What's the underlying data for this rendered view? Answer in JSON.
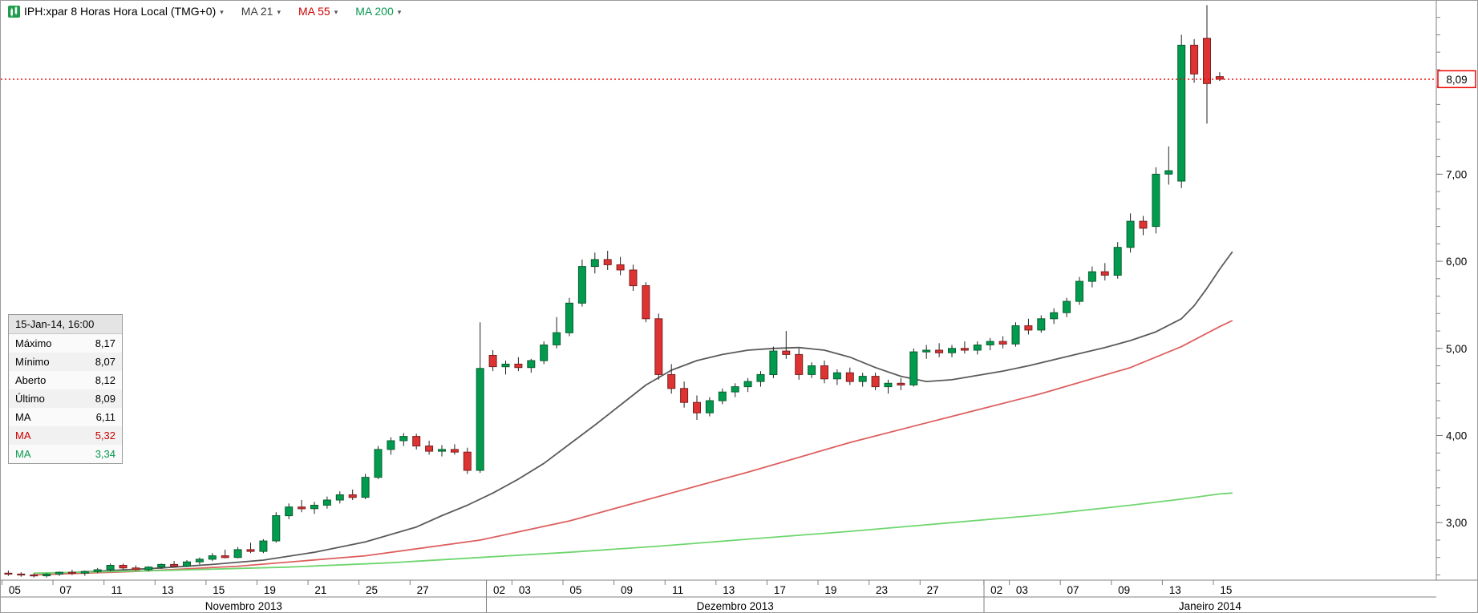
{
  "header": {
    "title": "IPH:xpar 8 Horas Hora Local (TMG+0)",
    "dropdown_caret": "▾",
    "ma_indicators": [
      {
        "label": "MA 21",
        "color": "#3c3c3c"
      },
      {
        "label": "MA 55",
        "color": "#cc0000"
      },
      {
        "label": "MA 200",
        "color": "#089950"
      }
    ]
  },
  "tooltip": {
    "timestamp": "15-Jan-14, 16:00",
    "rows": [
      {
        "label": "Máximo",
        "value": "8,17",
        "color": "#000000"
      },
      {
        "label": "Mínimo",
        "value": "8,07",
        "color": "#000000"
      },
      {
        "label": "Aberto",
        "value": "8,12",
        "color": "#000000"
      },
      {
        "label": "Último",
        "value": "8,09",
        "color": "#000000"
      },
      {
        "label": "MA",
        "value": "6,11",
        "color": "#000000"
      },
      {
        "label": "MA",
        "value": "5,32",
        "color": "#cc0000"
      },
      {
        "label": "MA",
        "value": "3,34",
        "color": "#089950"
      }
    ]
  },
  "price_marker": {
    "label": "8,09",
    "value": 8.09,
    "color": "#ee0000"
  },
  "chart_data": {
    "type": "candlestick",
    "title": "IPH:xpar 8 Horas Hora Local (TMG+0)",
    "last_price": 8.09,
    "price_range": {
      "min": 2.34,
      "max": 8.99
    },
    "y_ticks": [
      {
        "v": 3,
        "label": "3,00"
      },
      {
        "v": 4,
        "label": "4,00"
      },
      {
        "v": 5,
        "label": "5,00"
      },
      {
        "v": 6,
        "label": "6,00"
      },
      {
        "v": 7,
        "label": "7,00"
      }
    ],
    "x_ticks": [
      {
        "i": 0,
        "label": "05"
      },
      {
        "i": 4,
        "label": "07"
      },
      {
        "i": 8,
        "label": "11"
      },
      {
        "i": 12,
        "label": "13"
      },
      {
        "i": 16,
        "label": "15"
      },
      {
        "i": 20,
        "label": "19"
      },
      {
        "i": 24,
        "label": "21"
      },
      {
        "i": 28,
        "label": "25"
      },
      {
        "i": 32,
        "label": "27"
      },
      {
        "i": 38,
        "label": "02"
      },
      {
        "i": 40,
        "label": "03"
      },
      {
        "i": 44,
        "label": "05"
      },
      {
        "i": 48,
        "label": "09"
      },
      {
        "i": 52,
        "label": "11"
      },
      {
        "i": 56,
        "label": "13"
      },
      {
        "i": 60,
        "label": "17"
      },
      {
        "i": 64,
        "label": "19"
      },
      {
        "i": 68,
        "label": "23"
      },
      {
        "i": 72,
        "label": "27"
      },
      {
        "i": 77,
        "label": "02"
      },
      {
        "i": 79,
        "label": "03"
      },
      {
        "i": 83,
        "label": "07"
      },
      {
        "i": 87,
        "label": "09"
      },
      {
        "i": 91,
        "label": "13"
      },
      {
        "i": 95,
        "label": "15"
      }
    ],
    "months": [
      {
        "label": "Novembro 2013",
        "from": null,
        "to": 37.5
      },
      {
        "label": "Dezembro 2013",
        "from": 37.5,
        "to": 76.5
      },
      {
        "label": "Janeiro 2014",
        "from": 76.5,
        "to": null
      }
    ],
    "colors": {
      "up": "#009b4e",
      "up_stroke": "#0a5f30",
      "down": "#dd3333",
      "down_stroke": "#7e1f1f",
      "wick": "#222222",
      "ma21": "#5a5a5a",
      "ma55": "#de5f5f",
      "ma200": "#6fd66f",
      "marker": "#ee0000",
      "axis": "#808080",
      "text": "#000000"
    },
    "candles": [
      [
        2.42,
        2.45,
        2.39,
        2.41
      ],
      [
        2.41,
        2.43,
        2.38,
        2.4
      ],
      [
        2.4,
        2.42,
        2.37,
        2.39
      ],
      [
        2.39,
        2.42,
        2.37,
        2.41
      ],
      [
        2.41,
        2.44,
        2.39,
        2.43
      ],
      [
        2.43,
        2.46,
        2.4,
        2.42
      ],
      [
        2.42,
        2.45,
        2.39,
        2.44
      ],
      [
        2.44,
        2.48,
        2.42,
        2.46
      ],
      [
        2.46,
        2.53,
        2.44,
        2.51
      ],
      [
        2.51,
        2.53,
        2.46,
        2.48
      ],
      [
        2.48,
        2.51,
        2.45,
        2.46
      ],
      [
        2.46,
        2.5,
        2.44,
        2.49
      ],
      [
        2.49,
        2.53,
        2.47,
        2.52
      ],
      [
        2.52,
        2.56,
        2.49,
        2.5
      ],
      [
        2.5,
        2.57,
        2.49,
        2.55
      ],
      [
        2.55,
        2.6,
        2.52,
        2.58
      ],
      [
        2.58,
        2.65,
        2.56,
        2.62
      ],
      [
        2.62,
        2.69,
        2.59,
        2.6
      ],
      [
        2.6,
        2.72,
        2.59,
        2.69
      ],
      [
        2.69,
        2.77,
        2.65,
        2.67
      ],
      [
        2.67,
        2.81,
        2.65,
        2.79
      ],
      [
        2.79,
        3.12,
        2.77,
        3.08
      ],
      [
        3.08,
        3.22,
        3.04,
        3.18
      ],
      [
        3.18,
        3.26,
        3.12,
        3.16
      ],
      [
        3.16,
        3.24,
        3.1,
        3.2
      ],
      [
        3.2,
        3.3,
        3.16,
        3.26
      ],
      [
        3.26,
        3.36,
        3.22,
        3.32
      ],
      [
        3.32,
        3.38,
        3.26,
        3.29
      ],
      [
        3.29,
        3.56,
        3.27,
        3.52
      ],
      [
        3.52,
        3.88,
        3.5,
        3.84
      ],
      [
        3.84,
        3.98,
        3.78,
        3.94
      ],
      [
        3.94,
        4.03,
        3.88,
        3.99
      ],
      [
        3.99,
        4.02,
        3.84,
        3.88
      ],
      [
        3.88,
        3.94,
        3.78,
        3.82
      ],
      [
        3.82,
        3.89,
        3.76,
        3.84
      ],
      [
        3.84,
        3.9,
        3.78,
        3.81
      ],
      [
        3.81,
        3.86,
        3.56,
        3.6
      ],
      [
        3.6,
        5.3,
        3.57,
        4.77
      ],
      [
        4.92,
        4.98,
        4.74,
        4.79
      ],
      [
        4.79,
        4.86,
        4.7,
        4.82
      ],
      [
        4.82,
        4.9,
        4.74,
        4.78
      ],
      [
        4.78,
        4.88,
        4.72,
        4.86
      ],
      [
        4.86,
        5.08,
        4.82,
        5.04
      ],
      [
        5.04,
        5.36,
        5.0,
        5.18
      ],
      [
        5.18,
        5.58,
        5.14,
        5.52
      ],
      [
        5.52,
        6.02,
        5.48,
        5.94
      ],
      [
        5.94,
        6.1,
        5.86,
        6.02
      ],
      [
        6.02,
        6.12,
        5.9,
        5.96
      ],
      [
        5.96,
        6.05,
        5.84,
        5.9
      ],
      [
        5.9,
        5.96,
        5.66,
        5.72
      ],
      [
        5.72,
        5.76,
        5.3,
        5.34
      ],
      [
        5.34,
        5.4,
        4.64,
        4.7
      ],
      [
        4.7,
        4.82,
        4.48,
        4.54
      ],
      [
        4.54,
        4.62,
        4.32,
        4.38
      ],
      [
        4.38,
        4.46,
        4.18,
        4.26
      ],
      [
        4.26,
        4.44,
        4.22,
        4.4
      ],
      [
        4.4,
        4.54,
        4.36,
        4.5
      ],
      [
        4.5,
        4.6,
        4.44,
        4.56
      ],
      [
        4.56,
        4.66,
        4.5,
        4.62
      ],
      [
        4.62,
        4.74,
        4.56,
        4.7
      ],
      [
        4.7,
        5.02,
        4.66,
        4.97
      ],
      [
        4.97,
        5.2,
        4.88,
        4.93
      ],
      [
        4.93,
        5.0,
        4.64,
        4.7
      ],
      [
        4.7,
        4.84,
        4.66,
        4.8
      ],
      [
        4.8,
        4.86,
        4.6,
        4.65
      ],
      [
        4.65,
        4.76,
        4.58,
        4.72
      ],
      [
        4.72,
        4.78,
        4.58,
        4.62
      ],
      [
        4.62,
        4.72,
        4.56,
        4.68
      ],
      [
        4.68,
        4.72,
        4.52,
        4.56
      ],
      [
        4.56,
        4.64,
        4.48,
        4.6
      ],
      [
        4.6,
        4.66,
        4.52,
        4.58
      ],
      [
        4.58,
        5.0,
        4.56,
        4.96
      ],
      [
        4.96,
        5.04,
        4.88,
        4.98
      ],
      [
        4.98,
        5.06,
        4.9,
        4.95
      ],
      [
        4.95,
        5.04,
        4.9,
        5.0
      ],
      [
        5.0,
        5.08,
        4.94,
        4.98
      ],
      [
        4.98,
        5.08,
        4.93,
        5.04
      ],
      [
        5.04,
        5.12,
        4.98,
        5.08
      ],
      [
        5.08,
        5.14,
        5.0,
        5.05
      ],
      [
        5.05,
        5.3,
        5.02,
        5.26
      ],
      [
        5.26,
        5.34,
        5.16,
        5.21
      ],
      [
        5.21,
        5.38,
        5.18,
        5.34
      ],
      [
        5.34,
        5.46,
        5.28,
        5.41
      ],
      [
        5.41,
        5.58,
        5.36,
        5.54
      ],
      [
        5.54,
        5.82,
        5.5,
        5.77
      ],
      [
        5.77,
        5.94,
        5.7,
        5.88
      ],
      [
        5.88,
        5.98,
        5.78,
        5.84
      ],
      [
        5.84,
        6.22,
        5.8,
        6.16
      ],
      [
        6.16,
        6.55,
        6.1,
        6.46
      ],
      [
        6.46,
        6.52,
        6.3,
        6.38
      ],
      [
        6.4,
        7.08,
        6.32,
        7.0
      ],
      [
        7.0,
        7.32,
        6.88,
        7.04
      ],
      [
        6.92,
        8.6,
        6.84,
        8.48
      ],
      [
        8.48,
        8.55,
        8.05,
        8.15
      ],
      [
        8.56,
        8.94,
        7.58,
        8.04
      ],
      [
        8.12,
        8.17,
        8.07,
        8.09
      ]
    ],
    "moving_averages": [
      {
        "name": "MA 21",
        "color_key": "ma21",
        "points": [
          [
            4,
            2.42
          ],
          [
            8,
            2.45
          ],
          [
            12,
            2.48
          ],
          [
            16,
            2.52
          ],
          [
            20,
            2.57
          ],
          [
            24,
            2.66
          ],
          [
            28,
            2.78
          ],
          [
            32,
            2.95
          ],
          [
            34,
            3.08
          ],
          [
            36,
            3.2
          ],
          [
            38,
            3.34
          ],
          [
            40,
            3.5
          ],
          [
            42,
            3.68
          ],
          [
            44,
            3.9
          ],
          [
            46,
            4.12
          ],
          [
            48,
            4.35
          ],
          [
            50,
            4.58
          ],
          [
            52,
            4.75
          ],
          [
            54,
            4.86
          ],
          [
            56,
            4.93
          ],
          [
            58,
            4.98
          ],
          [
            60,
            5.0
          ],
          [
            62,
            5.01
          ],
          [
            64,
            4.98
          ],
          [
            66,
            4.9
          ],
          [
            68,
            4.78
          ],
          [
            70,
            4.68
          ],
          [
            72,
            4.62
          ],
          [
            74,
            4.64
          ],
          [
            76,
            4.69
          ],
          [
            78,
            4.74
          ],
          [
            80,
            4.8
          ],
          [
            82,
            4.87
          ],
          [
            84,
            4.94
          ],
          [
            86,
            5.01
          ],
          [
            88,
            5.09
          ],
          [
            90,
            5.19
          ],
          [
            92,
            5.34
          ],
          [
            93,
            5.49
          ],
          [
            94,
            5.69
          ],
          [
            95,
            5.91
          ],
          [
            96,
            6.11
          ]
        ]
      },
      {
        "name": "MA 55",
        "color_key": "ma55",
        "points": [
          [
            2,
            2.4
          ],
          [
            10,
            2.44
          ],
          [
            18,
            2.5
          ],
          [
            28,
            2.62
          ],
          [
            37,
            2.8
          ],
          [
            44,
            3.02
          ],
          [
            51,
            3.3
          ],
          [
            58,
            3.58
          ],
          [
            66,
            3.92
          ],
          [
            74,
            4.22
          ],
          [
            81,
            4.48
          ],
          [
            88,
            4.78
          ],
          [
            92,
            5.02
          ],
          [
            95,
            5.25
          ],
          [
            96,
            5.32
          ]
        ]
      },
      {
        "name": "MA 200",
        "color_key": "ma200",
        "points": [
          [
            2,
            2.42
          ],
          [
            12,
            2.45
          ],
          [
            22,
            2.49
          ],
          [
            30,
            2.54
          ],
          [
            37,
            2.6
          ],
          [
            44,
            2.66
          ],
          [
            51,
            2.73
          ],
          [
            58,
            2.81
          ],
          [
            66,
            2.9
          ],
          [
            74,
            3.0
          ],
          [
            81,
            3.09
          ],
          [
            88,
            3.2
          ],
          [
            92,
            3.27
          ],
          [
            95,
            3.33
          ],
          [
            96,
            3.34
          ]
        ]
      }
    ]
  }
}
